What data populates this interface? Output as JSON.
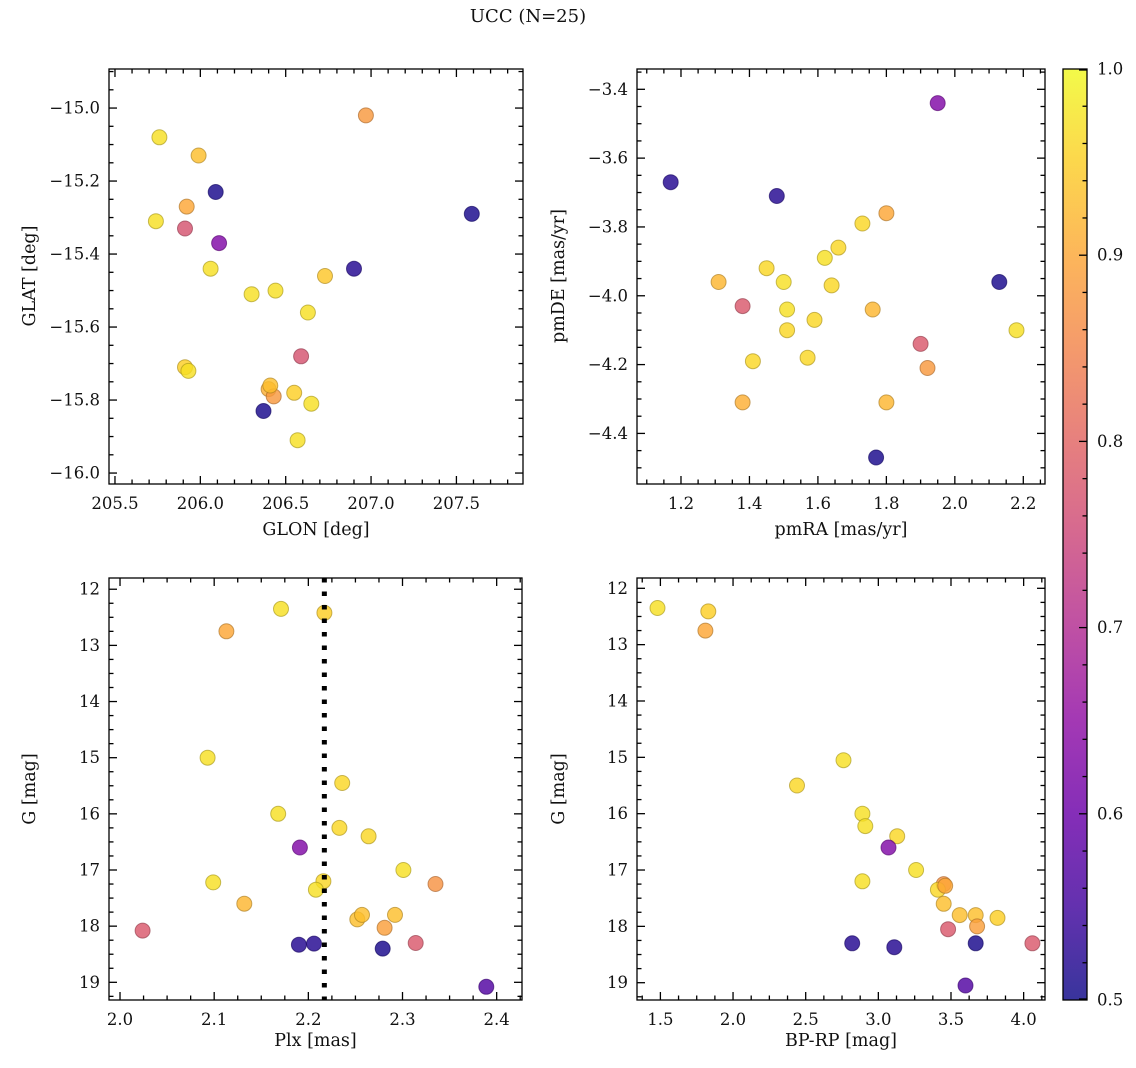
{
  "chart_data": {
    "type": "scatter",
    "title": "UCC (N=25)",
    "n_members": 25,
    "colormap": "plasma",
    "marker_alpha": 0.8,
    "colorbar": {
      "min": 0.5,
      "max": 1.0,
      "tick_values": [
        1.0,
        0.9,
        0.8,
        0.7,
        0.6,
        0.5
      ],
      "tick_labels": [
        "1.0",
        "0.9",
        "0.8",
        "0.7",
        "0.6",
        "0.5"
      ],
      "minor_step": 0.02
    },
    "panels": [
      {
        "id": "glon-glat",
        "xlabel": "GLON [deg]",
        "ylabel": "GLAT [deg]",
        "xlim": [
          205.465,
          207.89
        ],
        "ylim": [
          -16.03,
          -14.893
        ],
        "invert_y": false,
        "xticks": [
          205.5,
          206.0,
          206.5,
          207.0,
          207.5
        ],
        "xtick_labels": [
          "205.5",
          "206.0",
          "206.5",
          "207.0",
          "207.5"
        ],
        "yticks": [
          -15.0,
          -15.2,
          -15.4,
          -15.6,
          -15.8,
          -16.0
        ],
        "ytick_labels": [
          "−15.0",
          "−15.2",
          "−15.4",
          "−15.6",
          "−15.8",
          "−16.0"
        ],
        "xminor": 0.1,
        "yminor": 0.05,
        "points": [
          [
            206.97,
            -15.02,
            0.88
          ],
          [
            205.76,
            -15.08,
            0.97
          ],
          [
            205.99,
            -15.13,
            0.93
          ],
          [
            206.09,
            -15.23,
            0.51
          ],
          [
            205.92,
            -15.27,
            0.9
          ],
          [
            205.74,
            -15.31,
            0.97
          ],
          [
            205.91,
            -15.33,
            0.77
          ],
          [
            206.11,
            -15.37,
            0.63
          ],
          [
            206.06,
            -15.44,
            0.97
          ],
          [
            206.73,
            -15.46,
            0.94
          ],
          [
            206.9,
            -15.44,
            0.52
          ],
          [
            207.59,
            -15.29,
            0.51
          ],
          [
            206.3,
            -15.51,
            0.97
          ],
          [
            206.44,
            -15.5,
            0.97
          ],
          [
            206.63,
            -15.56,
            0.97
          ],
          [
            206.59,
            -15.68,
            0.77
          ],
          [
            205.91,
            -15.71,
            0.95
          ],
          [
            205.93,
            -15.72,
            0.97
          ],
          [
            206.4,
            -15.77,
            0.91
          ],
          [
            206.43,
            -15.79,
            0.88
          ],
          [
            206.55,
            -15.78,
            0.95
          ],
          [
            206.65,
            -15.81,
            0.97
          ],
          [
            206.37,
            -15.83,
            0.51
          ],
          [
            206.57,
            -15.91,
            0.97
          ],
          [
            206.41,
            -15.76,
            0.93
          ]
        ]
      },
      {
        "id": "pmra-pmde",
        "xlabel": "pmRA [mas/yr]",
        "ylabel": "pmDE [mas/yr]",
        "xlim": [
          1.0715,
          2.2634
        ],
        "ylim": [
          -4.547,
          -3.341
        ],
        "invert_y": false,
        "xticks": [
          1.2,
          1.4,
          1.6,
          1.8,
          2.0,
          2.2
        ],
        "xtick_labels": [
          "1.2",
          "1.4",
          "1.6",
          "1.8",
          "2.0",
          "2.2"
        ],
        "yticks": [
          -3.4,
          -3.6,
          -3.8,
          -4.0,
          -4.2,
          -4.4
        ],
        "ytick_labels": [
          "−3.4",
          "−3.6",
          "−3.8",
          "−4.0",
          "−4.2",
          "−4.4"
        ],
        "xminor": 0.05,
        "yminor": 0.05,
        "points": [
          [
            1.95,
            -3.44,
            0.63
          ],
          [
            1.17,
            -3.67,
            0.52
          ],
          [
            1.48,
            -3.71,
            0.52
          ],
          [
            1.8,
            -3.76,
            0.9
          ],
          [
            1.73,
            -3.79,
            0.96
          ],
          [
            1.66,
            -3.86,
            0.96
          ],
          [
            1.62,
            -3.89,
            0.97
          ],
          [
            1.45,
            -3.92,
            0.96
          ],
          [
            1.31,
            -3.96,
            0.92
          ],
          [
            1.5,
            -3.96,
            0.97
          ],
          [
            1.64,
            -3.97,
            0.96
          ],
          [
            2.13,
            -3.96,
            0.51
          ],
          [
            1.38,
            -4.03,
            0.78
          ],
          [
            1.51,
            -4.04,
            0.97
          ],
          [
            1.76,
            -4.04,
            0.92
          ],
          [
            1.59,
            -4.07,
            0.96
          ],
          [
            2.18,
            -4.1,
            0.97
          ],
          [
            1.51,
            -4.1,
            0.96
          ],
          [
            1.9,
            -4.14,
            0.78
          ],
          [
            1.41,
            -4.19,
            0.96
          ],
          [
            1.57,
            -4.18,
            0.96
          ],
          [
            1.92,
            -4.21,
            0.88
          ],
          [
            1.38,
            -4.31,
            0.91
          ],
          [
            1.8,
            -4.31,
            0.92
          ],
          [
            1.77,
            -4.47,
            0.51
          ]
        ]
      },
      {
        "id": "plx-g",
        "xlabel": "Plx [mas]",
        "ylabel": "G [mag]",
        "xlim": [
          1.9883,
          2.4269
        ],
        "ylim": [
          11.8,
          19.315
        ],
        "invert_y": true,
        "xticks": [
          2.0,
          2.1,
          2.2,
          2.3,
          2.4
        ],
        "xtick_labels": [
          "2.0",
          "2.1",
          "2.2",
          "2.3",
          "2.4"
        ],
        "yticks": [
          12,
          13,
          14,
          15,
          16,
          17,
          18,
          19
        ],
        "ytick_labels": [
          "12",
          "13",
          "14",
          "15",
          "16",
          "17",
          "18",
          "19"
        ],
        "xminor": 0.025,
        "yminor": 0.25,
        "vline": {
          "x": 2.217,
          "color": "#000000",
          "style": "dotted",
          "linewidth": 5
        },
        "points": [
          [
            2.171,
            12.35,
            0.97
          ],
          [
            2.217,
            12.42,
            0.95
          ],
          [
            2.113,
            12.75,
            0.9
          ],
          [
            2.093,
            15.0,
            0.97
          ],
          [
            2.236,
            15.45,
            0.96
          ],
          [
            2.168,
            16.0,
            0.97
          ],
          [
            2.233,
            16.25,
            0.96
          ],
          [
            2.264,
            16.4,
            0.96
          ],
          [
            2.191,
            16.6,
            0.63
          ],
          [
            2.301,
            17.0,
            0.97
          ],
          [
            2.099,
            17.22,
            0.97
          ],
          [
            2.216,
            17.2,
            0.96
          ],
          [
            2.208,
            17.35,
            0.97
          ],
          [
            2.335,
            17.25,
            0.87
          ],
          [
            2.132,
            17.6,
            0.92
          ],
          [
            2.252,
            17.88,
            0.93
          ],
          [
            2.257,
            17.8,
            0.93
          ],
          [
            2.292,
            17.8,
            0.93
          ],
          [
            2.281,
            18.03,
            0.89
          ],
          [
            2.024,
            18.08,
            0.78
          ],
          [
            2.19,
            18.33,
            0.52
          ],
          [
            2.206,
            18.31,
            0.52
          ],
          [
            2.279,
            18.4,
            0.51
          ],
          [
            2.314,
            18.3,
            0.78
          ],
          [
            2.389,
            19.08,
            0.57
          ]
        ]
      },
      {
        "id": "bprp-g",
        "xlabel": "BP-RP [mag]",
        "ylabel": "G [mag]",
        "xlim": [
          1.339,
          4.147
        ],
        "ylim": [
          11.817,
          19.307
        ],
        "invert_y": true,
        "xticks": [
          1.5,
          2.0,
          2.5,
          3.0,
          3.5,
          4.0
        ],
        "xtick_labels": [
          "1.5",
          "2.0",
          "2.5",
          "3.0",
          "3.5",
          "4.0"
        ],
        "yticks": [
          12,
          13,
          14,
          15,
          16,
          17,
          18,
          19
        ],
        "ytick_labels": [
          "12",
          "13",
          "14",
          "15",
          "16",
          "17",
          "18",
          "19"
        ],
        "xminor": 0.125,
        "yminor": 0.25,
        "points": [
          [
            1.48,
            12.35,
            0.97
          ],
          [
            1.83,
            12.41,
            0.95
          ],
          [
            1.81,
            12.75,
            0.9
          ],
          [
            2.76,
            15.05,
            0.97
          ],
          [
            2.44,
            15.5,
            0.96
          ],
          [
            2.89,
            16.0,
            0.97
          ],
          [
            2.91,
            16.22,
            0.97
          ],
          [
            3.13,
            16.4,
            0.96
          ],
          [
            3.07,
            16.6,
            0.63
          ],
          [
            3.26,
            17.0,
            0.97
          ],
          [
            2.89,
            17.2,
            0.97
          ],
          [
            3.45,
            17.25,
            0.87
          ],
          [
            3.41,
            17.35,
            0.96
          ],
          [
            3.46,
            17.28,
            0.9
          ],
          [
            3.45,
            17.6,
            0.93
          ],
          [
            3.56,
            17.8,
            0.93
          ],
          [
            3.67,
            17.8,
            0.93
          ],
          [
            3.82,
            17.85,
            0.95
          ],
          [
            3.68,
            18.0,
            0.89
          ],
          [
            3.48,
            18.05,
            0.78
          ],
          [
            2.82,
            18.3,
            0.52
          ],
          [
            3.11,
            18.37,
            0.52
          ],
          [
            3.67,
            18.3,
            0.51
          ],
          [
            4.06,
            18.3,
            0.78
          ],
          [
            3.6,
            19.05,
            0.57
          ]
        ]
      }
    ]
  }
}
